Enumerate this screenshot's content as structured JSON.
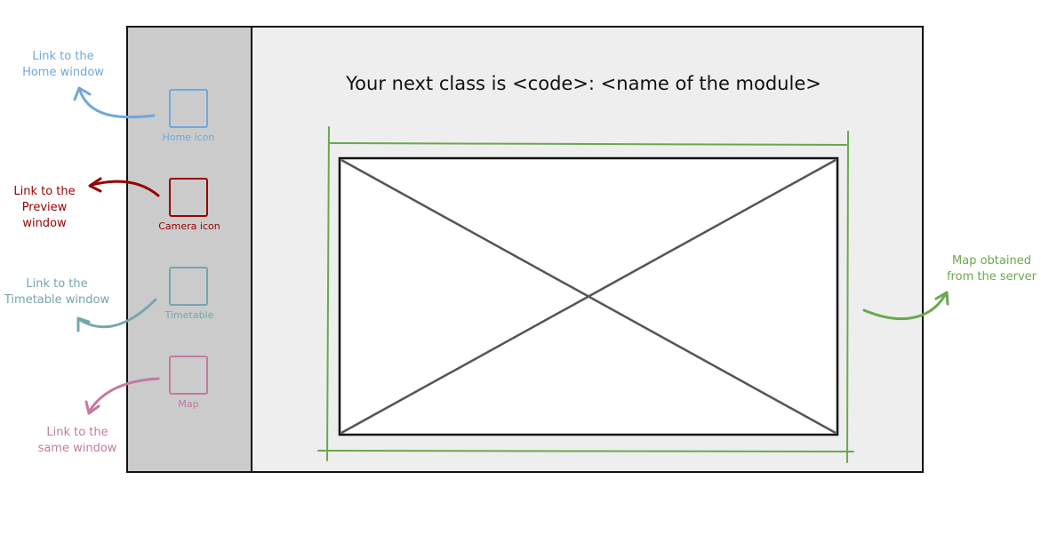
{
  "colors": {
    "home": "#6fa8dc",
    "camera": "#990000",
    "timetable": "#76a5af",
    "map": "#c27ba0",
    "map_frame": "#6aa84f"
  },
  "header": {
    "title": "Your next class is <code>: <name of the module>"
  },
  "sidebar": {
    "items": [
      {
        "label": "Home icon",
        "icon": "home-icon"
      },
      {
        "label": "Camera icon",
        "icon": "camera-icon"
      },
      {
        "label": "Timetable",
        "icon": "timetable-icon"
      },
      {
        "label": "Map",
        "icon": "map-icon"
      }
    ]
  },
  "annotations": {
    "home": "Link to the\nHome window",
    "camera": "Link to the\nPreview window",
    "timetable": "Link to the\nTimetable window",
    "map": "Link to the\nsame window",
    "map_image": "Map obtained\nfrom the server"
  }
}
